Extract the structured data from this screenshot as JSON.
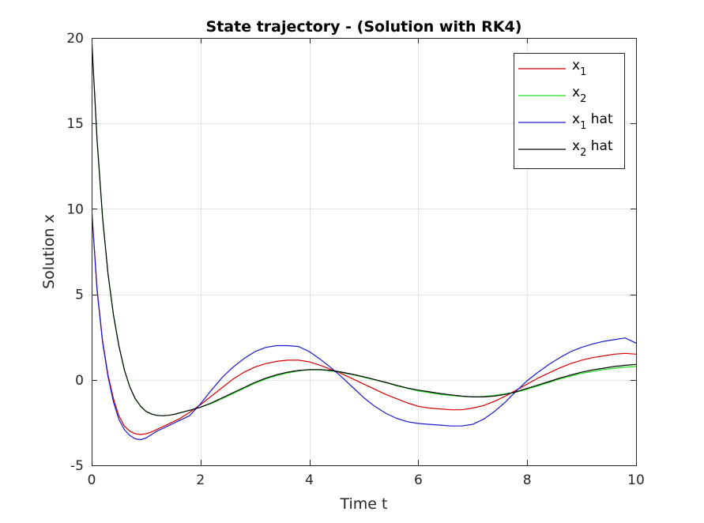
{
  "chart_data": {
    "type": "line",
    "title": "State trajectory - (Solution with RK4)",
    "xlabel": "Time t",
    "ylabel": "Solution x",
    "xlim": [
      0,
      10
    ],
    "ylim": [
      -5,
      20
    ],
    "xticks": [
      0,
      2,
      4,
      6,
      8,
      10
    ],
    "xtick_labels": [
      "0",
      "2",
      "4",
      "6",
      "8",
      "10"
    ],
    "yticks": [
      -5,
      0,
      5,
      10,
      15,
      20
    ],
    "ytick_labels": [
      "-5",
      "0",
      "5",
      "10",
      "15",
      "20"
    ],
    "grid": true,
    "legend_position": "top-right",
    "series": [
      {
        "name": "x1",
        "legend_label": {
          "base": "x",
          "sub": "1",
          "suffix": ""
        },
        "color": "#d40000",
        "x": [
          0,
          0.1,
          0.2,
          0.3,
          0.4,
          0.5,
          0.6,
          0.7,
          0.8,
          0.9,
          1.0,
          1.1,
          1.2,
          1.3,
          1.4,
          1.5,
          1.6,
          1.7,
          1.8,
          2.0,
          2.2,
          2.4,
          2.6,
          2.8,
          3.0,
          3.2,
          3.4,
          3.6,
          3.8,
          4.0,
          4.2,
          4.4,
          4.6,
          4.8,
          5.0,
          5.2,
          5.4,
          5.6,
          5.8,
          6.0,
          6.2,
          6.4,
          6.6,
          6.8,
          7.0,
          7.2,
          7.4,
          7.6,
          7.8,
          8.0,
          8.2,
          8.4,
          8.6,
          8.8,
          9.0,
          9.2,
          9.4,
          9.6,
          9.8,
          10.0
        ],
        "y": [
          10,
          5.3,
          2.3,
          0.3,
          -1.1,
          -2.1,
          -2.7,
          -3.0,
          -3.15,
          -3.2,
          -3.15,
          -3.05,
          -2.9,
          -2.75,
          -2.6,
          -2.45,
          -2.3,
          -2.1,
          -1.9,
          -1.45,
          -0.95,
          -0.45,
          0.05,
          0.45,
          0.75,
          0.95,
          1.08,
          1.15,
          1.15,
          1.05,
          0.85,
          0.6,
          0.35,
          0.05,
          -0.25,
          -0.55,
          -0.85,
          -1.1,
          -1.35,
          -1.55,
          -1.65,
          -1.7,
          -1.75,
          -1.75,
          -1.65,
          -1.5,
          -1.25,
          -0.95,
          -0.6,
          -0.25,
          0.1,
          0.4,
          0.7,
          0.95,
          1.15,
          1.3,
          1.4,
          1.5,
          1.55,
          1.5
        ]
      },
      {
        "name": "x2",
        "legend_label": {
          "base": "x",
          "sub": "2",
          "suffix": ""
        },
        "color": "#22dd22",
        "x": [
          0,
          0.1,
          0.2,
          0.3,
          0.4,
          0.5,
          0.6,
          0.7,
          0.8,
          0.9,
          1.0,
          1.1,
          1.2,
          1.3,
          1.4,
          1.5,
          1.6,
          1.8,
          2.0,
          2.2,
          2.4,
          2.6,
          2.8,
          3.0,
          3.2,
          3.4,
          3.6,
          3.8,
          4.0,
          4.2,
          4.4,
          4.6,
          4.8,
          5.0,
          5.2,
          5.4,
          5.6,
          5.8,
          6.0,
          6.2,
          6.4,
          6.6,
          6.8,
          7.0,
          7.2,
          7.4,
          7.6,
          7.8,
          8.0,
          8.2,
          8.4,
          8.6,
          8.8,
          9.0,
          9.2,
          9.4,
          9.6,
          9.8,
          10.0
        ],
        "y": [
          20,
          14.0,
          9.5,
          6.2,
          3.8,
          2.0,
          0.6,
          -0.4,
          -1.1,
          -1.55,
          -1.85,
          -2.0,
          -2.08,
          -2.1,
          -2.08,
          -2.03,
          -1.95,
          -1.78,
          -1.6,
          -1.38,
          -1.1,
          -0.8,
          -0.5,
          -0.2,
          0.05,
          0.25,
          0.4,
          0.52,
          0.58,
          0.58,
          0.52,
          0.42,
          0.3,
          0.15,
          0.0,
          -0.15,
          -0.35,
          -0.5,
          -0.65,
          -0.75,
          -0.85,
          -0.92,
          -0.97,
          -1.0,
          -0.97,
          -0.9,
          -0.82,
          -0.72,
          -0.55,
          -0.35,
          -0.15,
          0.05,
          0.22,
          0.38,
          0.5,
          0.6,
          0.68,
          0.75,
          0.78
        ]
      },
      {
        "name": "x1 hat",
        "legend_label": {
          "base": "x",
          "sub": "1",
          "suffix": " hat"
        },
        "color": "#1a1acc",
        "x": [
          0,
          0.1,
          0.2,
          0.3,
          0.4,
          0.5,
          0.6,
          0.7,
          0.8,
          0.9,
          1.0,
          1.1,
          1.2,
          1.3,
          1.4,
          1.5,
          1.6,
          1.8,
          2.0,
          2.2,
          2.4,
          2.6,
          2.8,
          3.0,
          3.2,
          3.4,
          3.6,
          3.8,
          4.0,
          4.2,
          4.4,
          4.6,
          4.8,
          5.0,
          5.2,
          5.4,
          5.6,
          5.8,
          6.0,
          6.2,
          6.4,
          6.6,
          6.8,
          7.0,
          7.2,
          7.4,
          7.6,
          7.8,
          8.0,
          8.2,
          8.4,
          8.6,
          8.8,
          9.0,
          9.2,
          9.4,
          9.6,
          9.8,
          10.0
        ],
        "y": [
          10,
          5.2,
          2.2,
          0.2,
          -1.3,
          -2.3,
          -2.9,
          -3.25,
          -3.45,
          -3.5,
          -3.4,
          -3.2,
          -3.0,
          -2.85,
          -2.7,
          -2.55,
          -2.4,
          -2.1,
          -1.4,
          -0.6,
          0.15,
          0.75,
          1.25,
          1.65,
          1.9,
          2.0,
          2.0,
          1.95,
          1.65,
          1.2,
          0.7,
          0.15,
          -0.45,
          -1.05,
          -1.55,
          -1.95,
          -2.25,
          -2.45,
          -2.55,
          -2.6,
          -2.65,
          -2.7,
          -2.7,
          -2.6,
          -2.3,
          -1.85,
          -1.3,
          -0.65,
          -0.05,
          0.45,
          0.9,
          1.3,
          1.65,
          1.9,
          2.1,
          2.25,
          2.35,
          2.45,
          2.15
        ]
      },
      {
        "name": "x2 hat",
        "legend_label": {
          "base": "x",
          "sub": "2",
          "suffix": " hat"
        },
        "color": "#000000",
        "x": [
          0,
          0.1,
          0.2,
          0.3,
          0.4,
          0.5,
          0.6,
          0.7,
          0.8,
          0.9,
          1.0,
          1.1,
          1.2,
          1.3,
          1.4,
          1.5,
          1.6,
          1.8,
          2.0,
          2.2,
          2.4,
          2.6,
          2.8,
          3.0,
          3.2,
          3.4,
          3.6,
          3.8,
          4.0,
          4.2,
          4.4,
          4.6,
          4.8,
          5.0,
          5.2,
          5.4,
          5.6,
          5.8,
          6.0,
          6.2,
          6.4,
          6.6,
          6.8,
          7.0,
          7.2,
          7.4,
          7.6,
          7.8,
          8.0,
          8.2,
          8.4,
          8.6,
          8.8,
          9.0,
          9.2,
          9.4,
          9.6,
          9.8,
          10.0
        ],
        "y": [
          20,
          14.0,
          9.5,
          6.2,
          3.8,
          2.0,
          0.6,
          -0.4,
          -1.1,
          -1.55,
          -1.85,
          -2.0,
          -2.08,
          -2.1,
          -2.08,
          -2.03,
          -1.95,
          -1.78,
          -1.6,
          -1.35,
          -1.05,
          -0.75,
          -0.45,
          -0.15,
          0.1,
          0.3,
          0.45,
          0.55,
          0.6,
          0.6,
          0.55,
          0.45,
          0.32,
          0.18,
          0.02,
          -0.15,
          -0.32,
          -0.48,
          -0.6,
          -0.7,
          -0.8,
          -0.88,
          -0.95,
          -1.0,
          -1.0,
          -0.95,
          -0.85,
          -0.7,
          -0.5,
          -0.3,
          -0.1,
          0.1,
          0.28,
          0.45,
          0.58,
          0.68,
          0.78,
          0.85,
          0.9
        ]
      }
    ]
  }
}
